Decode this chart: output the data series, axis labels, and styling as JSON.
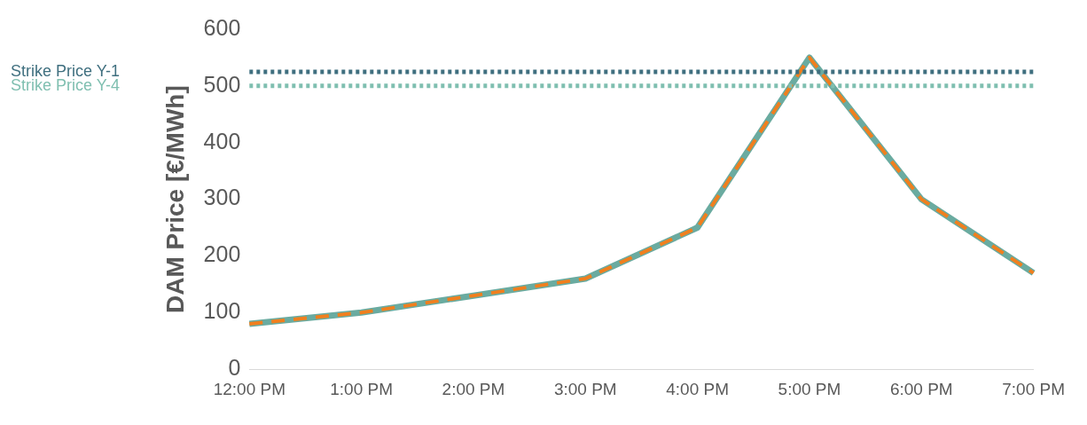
{
  "chart_data": {
    "type": "line",
    "ylabel": "DAM Price [€/MWh]",
    "categories": [
      "12:00 PM",
      "1:00 PM",
      "2:00 PM",
      "3:00 PM",
      "4:00 PM",
      "5:00 PM",
      "6:00 PM",
      "7:00 PM"
    ],
    "series": [
      {
        "color": "#6aaba0",
        "line_style": "solid",
        "values": [
          80,
          100,
          130,
          160,
          250,
          550,
          300,
          170
        ]
      },
      {
        "color": "#f07f1e",
        "line_style": "dashed",
        "values": [
          80,
          100,
          130,
          160,
          250,
          550,
          300,
          170
        ]
      }
    ],
    "ylim": [
      0,
      600
    ],
    "yticks": [
      0,
      100,
      200,
      300,
      400,
      500,
      600
    ],
    "grid": false,
    "legend": false,
    "marker": "none",
    "ref_lines": [
      {
        "axis": "y",
        "value": 525,
        "label": "Strike Price Y-1",
        "color": "#3f6f7f",
        "line_style": "dotted"
      },
      {
        "axis": "y",
        "value": 500,
        "label": "Strike Price Y-4",
        "color": "#7fbfb0",
        "line_style": "dotted"
      }
    ]
  }
}
